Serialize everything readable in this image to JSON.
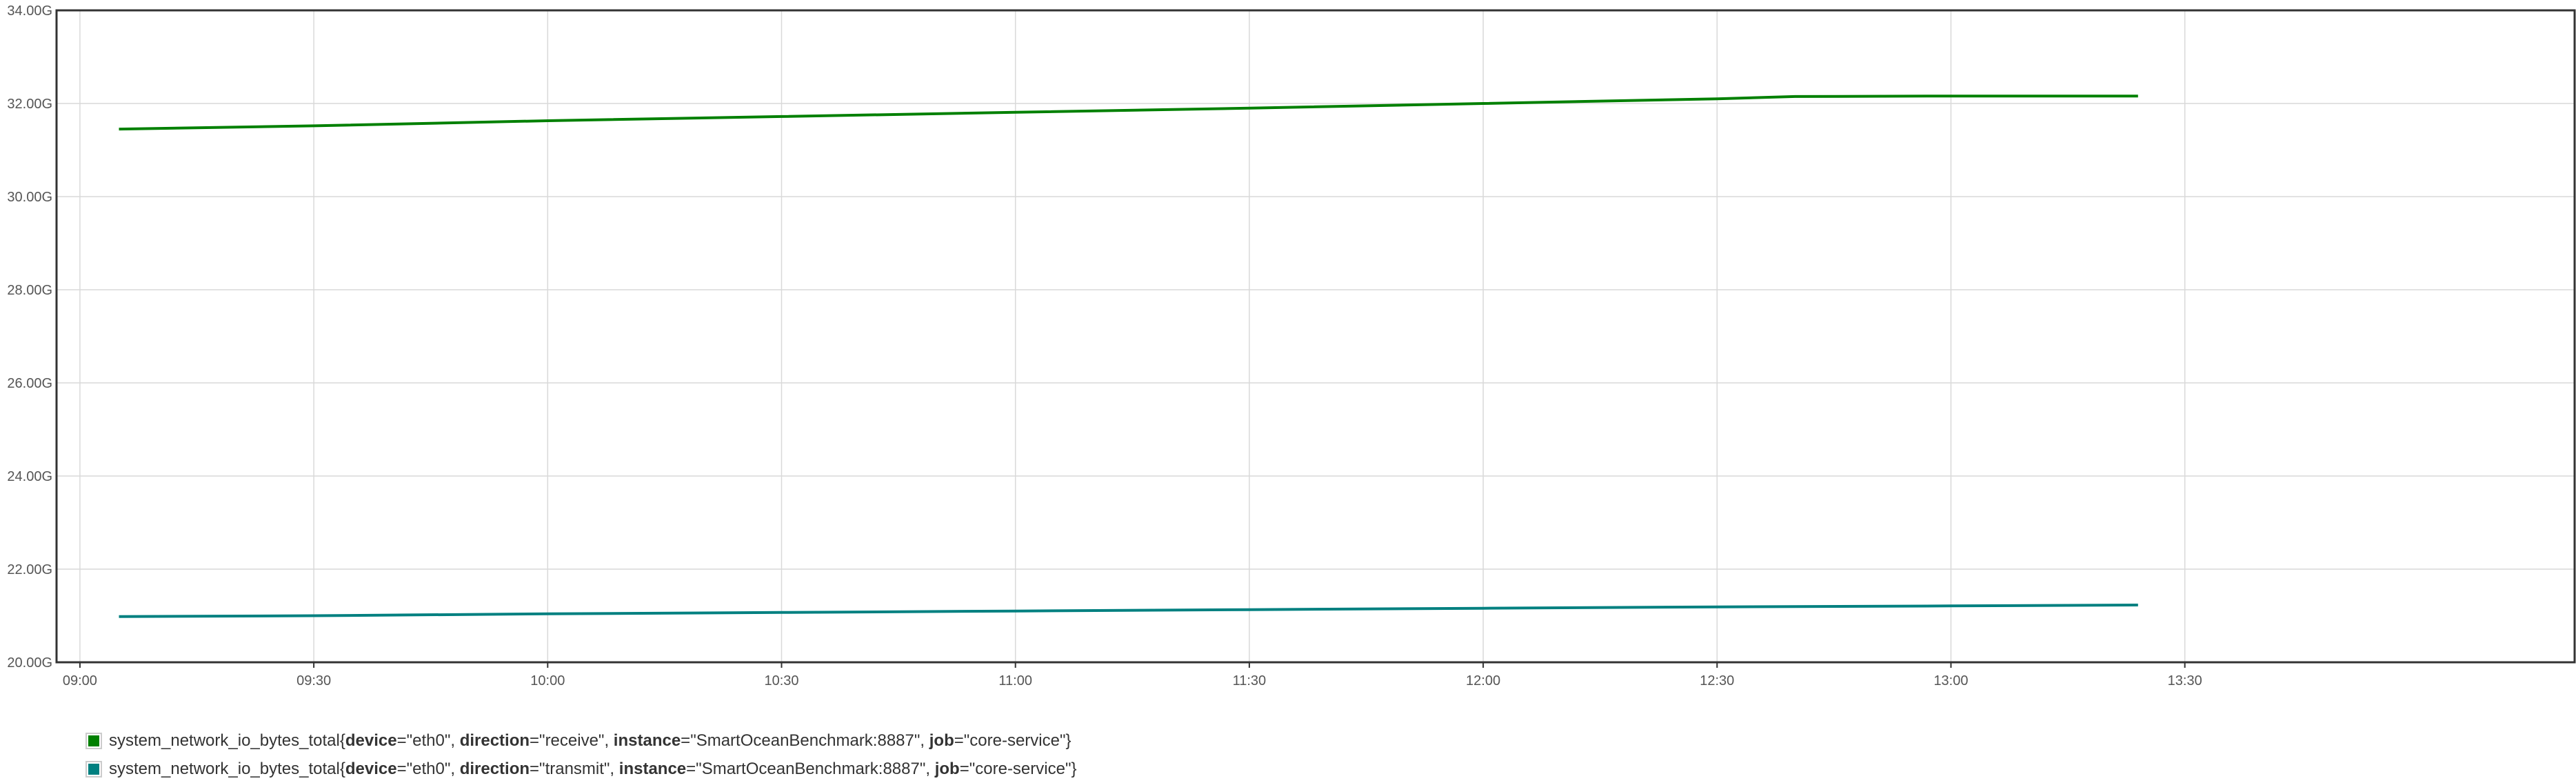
{
  "chart_data": {
    "type": "line",
    "title": "",
    "xlabel": "",
    "ylabel": "",
    "ylim": [
      20.0,
      34.0
    ],
    "y_ticks": [
      "20.00G",
      "22.00G",
      "24.00G",
      "26.00G",
      "28.00G",
      "30.00G",
      "32.00G",
      "34.00G"
    ],
    "y_tick_values": [
      20,
      22,
      24,
      26,
      28,
      30,
      32,
      34
    ],
    "x_range": [
      "08:57",
      "14:20"
    ],
    "x_ticks": [
      "09:00",
      "09:30",
      "10:00",
      "10:30",
      "11:00",
      "11:30",
      "12:00",
      "12:30",
      "13:00",
      "13:30"
    ],
    "grid": true,
    "legend_position": "bottom",
    "series": [
      {
        "name": "receive",
        "color": "#008000",
        "x": [
          "09:05",
          "09:30",
          "10:00",
          "10:30",
          "11:00",
          "11:30",
          "12:00",
          "12:30",
          "12:40",
          "13:00",
          "13:24"
        ],
        "values": [
          31.45,
          31.52,
          31.63,
          31.72,
          31.81,
          31.9,
          32.0,
          32.1,
          32.15,
          32.16,
          32.16
        ]
      },
      {
        "name": "transmit",
        "color": "#008080",
        "x": [
          "09:05",
          "09:30",
          "10:00",
          "10:30",
          "11:00",
          "11:30",
          "12:00",
          "12:30",
          "13:00",
          "13:24"
        ],
        "values": [
          20.98,
          21.0,
          21.04,
          21.07,
          21.1,
          21.13,
          21.16,
          21.19,
          21.21,
          21.23
        ]
      }
    ]
  },
  "legend": {
    "items": [
      {
        "color": "#008000",
        "metric": "system_network_io_bytes_total",
        "open": "{",
        "k1": "device",
        "v1": "=\"eth0\", ",
        "k2": "direction",
        "v2": "=\"receive\", ",
        "k3": "instance",
        "v3": "=\"SmartOceanBenchmark:8887\", ",
        "k4": "job",
        "v4": "=\"core-service\"}"
      },
      {
        "color": "#008080",
        "metric": "system_network_io_bytes_total",
        "open": "{",
        "k1": "device",
        "v1": "=\"eth0\", ",
        "k2": "direction",
        "v2": "=\"transmit\", ",
        "k3": "instance",
        "v3": "=\"SmartOceanBenchmark:8887\", ",
        "k4": "job",
        "v4": "=\"core-service\"}"
      }
    ]
  }
}
